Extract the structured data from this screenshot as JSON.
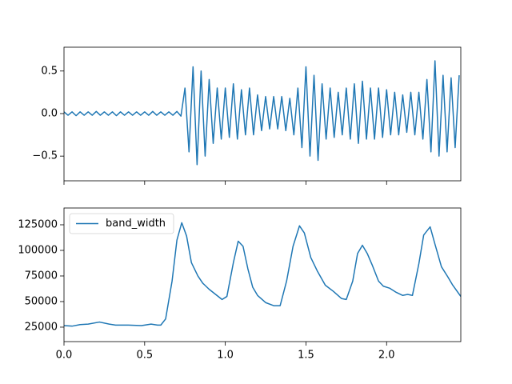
{
  "chart_data": [
    {
      "type": "line",
      "x": [
        0,
        0.025,
        0.05,
        0.075,
        0.1,
        0.125,
        0.15,
        0.175,
        0.2,
        0.225,
        0.25,
        0.275,
        0.3,
        0.325,
        0.35,
        0.375,
        0.4,
        0.425,
        0.45,
        0.475,
        0.5,
        0.525,
        0.55,
        0.575,
        0.6,
        0.625,
        0.65,
        0.675,
        0.7,
        0.725,
        0.75,
        0.775,
        0.8,
        0.825,
        0.85,
        0.875,
        0.9,
        0.925,
        0.95,
        0.975,
        1,
        1.025,
        1.05,
        1.075,
        1.1,
        1.125,
        1.15,
        1.175,
        1.2,
        1.225,
        1.25,
        1.275,
        1.3,
        1.325,
        1.35,
        1.375,
        1.4,
        1.425,
        1.45,
        1.475,
        1.5,
        1.525,
        1.55,
        1.575,
        1.6,
        1.625,
        1.65,
        1.675,
        1.7,
        1.725,
        1.75,
        1.775,
        1.8,
        1.825,
        1.85,
        1.875,
        1.9,
        1.925,
        1.95,
        1.975,
        2,
        2.025,
        2.05,
        2.075,
        2.1,
        2.125,
        2.15,
        2.175,
        2.2,
        2.225,
        2.25,
        2.275,
        2.3,
        2.325,
        2.35,
        2.375,
        2.4,
        2.425,
        2.45
      ],
      "series": [
        {
          "color": "#1f77b4",
          "values": [
            0.02,
            -0.02,
            0.02,
            -0.025,
            0.02,
            -0.02,
            0.02,
            -0.02,
            0.025,
            -0.02,
            0.02,
            -0.02,
            0.02,
            -0.025,
            0.02,
            -0.02,
            0.02,
            -0.02,
            0.02,
            -0.02,
            0.02,
            -0.02,
            0.025,
            -0.02,
            0.02,
            -0.02,
            0.02,
            -0.02,
            0.025,
            -0.03,
            0.3,
            -0.45,
            0.55,
            -0.6,
            0.5,
            -0.5,
            0.4,
            -0.35,
            0.3,
            -0.3,
            0.3,
            -0.28,
            0.35,
            -0.3,
            0.28,
            -0.25,
            0.3,
            -0.25,
            0.22,
            -0.2,
            0.2,
            -0.18,
            0.2,
            -0.18,
            0.2,
            -0.2,
            0.18,
            -0.25,
            0.3,
            -0.4,
            0.55,
            -0.5,
            0.45,
            -0.55,
            0.35,
            -0.3,
            0.3,
            -0.28,
            0.25,
            -0.25,
            0.3,
            -0.3,
            0.35,
            -0.35,
            0.38,
            -0.3,
            0.3,
            -0.3,
            0.3,
            -0.28,
            0.28,
            -0.25,
            0.25,
            -0.25,
            0.22,
            -0.22,
            0.25,
            -0.25,
            0.25,
            -0.3,
            0.4,
            -0.45,
            0.62,
            -0.5,
            0.45,
            -0.45,
            0.42,
            -0.4,
            0.45
          ]
        }
      ],
      "xlim": [
        0,
        2.46
      ],
      "ylim": [
        -0.79,
        0.78
      ],
      "xticks": [
        0,
        0.5,
        1,
        1.5,
        2
      ],
      "yticks": [
        {
          "value": -0.5,
          "label": "−0.5"
        },
        {
          "value": 0,
          "label": "0.0"
        },
        0.5
      ]
    },
    {
      "type": "line",
      "x": [
        0,
        0.05,
        0.1,
        0.15,
        0.22,
        0.28,
        0.32,
        0.4,
        0.48,
        0.54,
        0.58,
        0.6,
        0.63,
        0.67,
        0.7,
        0.73,
        0.76,
        0.79,
        0.83,
        0.86,
        0.9,
        0.94,
        0.98,
        1.01,
        1.05,
        1.08,
        1.11,
        1.14,
        1.17,
        1.2,
        1.25,
        1.3,
        1.34,
        1.38,
        1.42,
        1.46,
        1.49,
        1.53,
        1.57,
        1.62,
        1.67,
        1.72,
        1.75,
        1.79,
        1.82,
        1.85,
        1.88,
        1.91,
        1.95,
        1.98,
        2.02,
        2.06,
        2.1,
        2.13,
        2.16,
        2.2,
        2.23,
        2.27,
        2.3,
        2.34,
        2.38,
        2.41,
        2.46
      ],
      "series": [
        {
          "name": "band_width",
          "color": "#1f77b4",
          "values": [
            26500,
            26000,
            27500,
            28000,
            30000,
            28000,
            27000,
            27000,
            26500,
            28000,
            27000,
            27000,
            33000,
            70000,
            110000,
            127000,
            114000,
            88000,
            75000,
            68000,
            62000,
            57000,
            52000,
            55000,
            88000,
            109000,
            104000,
            82000,
            64000,
            56000,
            49000,
            46000,
            46000,
            70000,
            104000,
            124000,
            117000,
            93000,
            80000,
            66000,
            60000,
            53000,
            52000,
            70000,
            97000,
            105000,
            97000,
            86000,
            70000,
            65000,
            63000,
            59000,
            56000,
            57000,
            56000,
            87000,
            115000,
            123000,
            106000,
            84000,
            74000,
            66000,
            55000
          ]
        }
      ],
      "xlim": [
        0,
        2.46
      ],
      "ylim": [
        10900,
        141400
      ],
      "xticks": [
        {
          "value": 0,
          "label": "0.0"
        },
        0.5,
        {
          "value": 1,
          "label": "1.0"
        },
        1.5,
        {
          "value": 2,
          "label": "2.0"
        }
      ],
      "yticks": [
        25000,
        50000,
        75000,
        100000,
        125000
      ],
      "legend": "upper left"
    }
  ]
}
